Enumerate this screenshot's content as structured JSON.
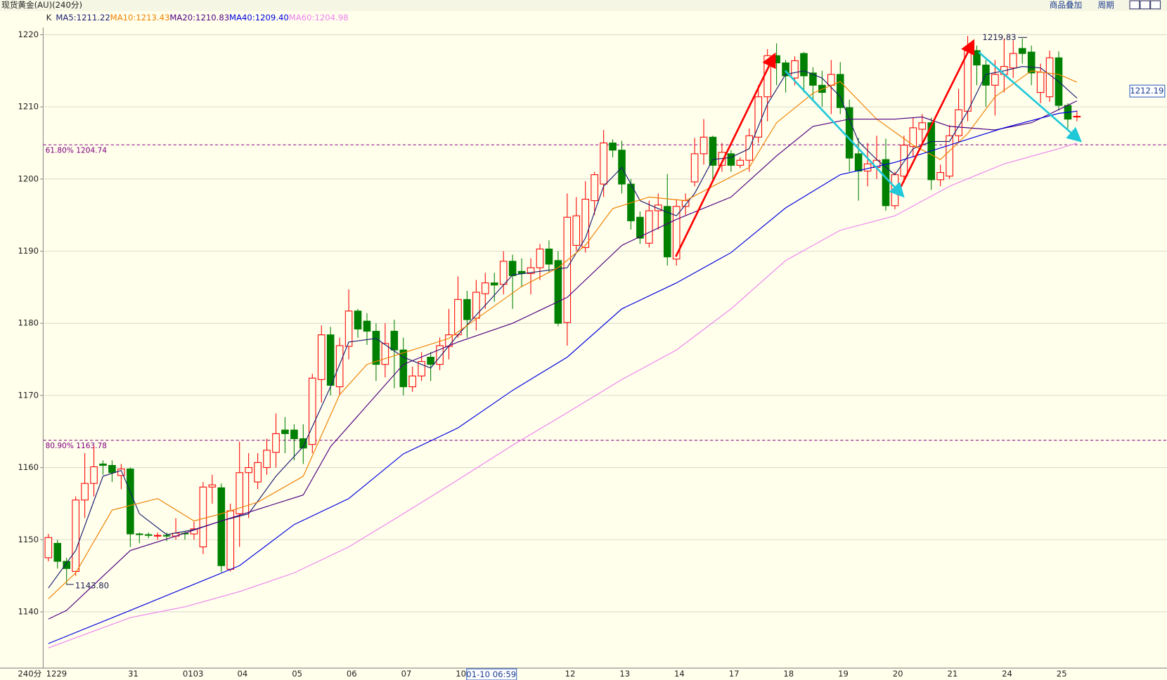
{
  "chart_data": {
    "type": "candlestick",
    "title": "现货黄金(AU)(240分)",
    "toolbar": [
      "商品叠加",
      "周期"
    ],
    "k_label": "K",
    "period_label": "240分",
    "crosshair_label": "01-10 06:59",
    "categories": [
      "1229",
      null,
      null,
      null,
      null,
      null,
      null,
      null,
      null,
      "31",
      null,
      null,
      null,
      null,
      null,
      "0103",
      null,
      null,
      null,
      null,
      null,
      "04",
      null,
      null,
      null,
      null,
      null,
      "05",
      null,
      null,
      null,
      null,
      null,
      "06",
      null,
      null,
      null,
      null,
      null,
      "07",
      null,
      null,
      null,
      null,
      null,
      "10",
      null,
      null,
      null,
      null,
      null,
      null,
      null,
      null,
      null,
      null,
      null,
      "12",
      null,
      null,
      null,
      null,
      null,
      "13",
      null,
      null,
      null,
      null,
      null,
      "14",
      null,
      null,
      null,
      null,
      null,
      "17",
      null,
      null,
      null,
      null,
      null,
      "18",
      null,
      null,
      null,
      null,
      null,
      "19",
      null,
      null,
      null,
      null,
      null,
      "20",
      null,
      null,
      null,
      null,
      null,
      "21",
      null,
      null,
      null,
      null,
      null,
      "24",
      null,
      null,
      null,
      null,
      null,
      "25",
      null,
      null
    ],
    "open": [
      1147.5,
      1149.5,
      1147,
      1145.6,
      1155.5,
      1157.8,
      1160.5,
      1160.3,
      1158.9,
      1159.8,
      1150.8,
      1150.7,
      1150.6,
      1150.6,
      1150.5,
      1150.9,
      1150.8,
      1149,
      1157.3,
      1157.2,
      1145.9,
      1153.6,
      1159.3,
      1158,
      1160,
      1162.1,
      1165.2,
      1165.2,
      1164,
      1163.2,
      1172.2,
      1178.4,
      1171.2,
      1176.8,
      1181.7,
      1180.3,
      1178.9,
      1174.3,
      1178.9,
      1176.3,
      1171.2,
      1172.7,
      1175.3,
      1174.3,
      1176.8,
      1178.4,
      1183.3,
      1180.7,
      1184.1,
      1185.6,
      1185.4,
      1188.6,
      1187.2,
      1186.9,
      1187.7,
      1190.3,
      1188.7,
      1180.1,
      1190.8,
      1190.5,
      1197,
      1199.3,
      1205,
      1204,
      1199.3,
      1194.7,
      1191.1,
      1195.6,
      1196.2,
      1188.9,
      1196.2,
      1199.6,
      1203.5,
      1205.8,
      1201.9,
      1203.5,
      1201.9,
      1202.6,
      1205.8,
      1211.4,
      1217.1,
      1216.1,
      1214,
      1217.4,
      1214.7,
      1213,
      1213,
      1214.5,
      1209.9,
      1203.5,
      1201.1,
      1201.6,
      1202.7,
      1196.3,
      1200.4,
      1204.5,
      1206.9,
      1207.8,
      1199.9,
      1200.4,
      1206,
      1209.4,
      1217.8,
      1215.8,
      1213,
      1214.5,
      1215.4,
      1218.1,
      1217.6,
      1212,
      1211.4,
      1216.8,
      1210.2,
      1208.6
    ],
    "high": [
      1150.8,
      1150,
      1147.5,
      1156,
      1162,
      1163,
      1161,
      1161,
      1160.5,
      1160,
      1151,
      1151,
      1151,
      1151,
      1153,
      1151.2,
      1152.5,
      1158,
      1159,
      1157.8,
      1155,
      1163.6,
      1162,
      1162,
      1164,
      1167.5,
      1167,
      1166,
      1166,
      1173,
      1179.7,
      1179.5,
      1178,
      1184.7,
      1182,
      1181.4,
      1180,
      1180,
      1180.5,
      1178,
      1174,
      1176,
      1176,
      1178,
      1182,
      1186.5,
      1184.5,
      1186,
      1187,
      1187,
      1190,
      1189.5,
      1189,
      1189,
      1191,
      1191.5,
      1190,
      1198,
      1197.5,
      1199.7,
      1201,
      1206.8,
      1205.5,
      1205.3,
      1200,
      1195.5,
      1197,
      1198,
      1200.7,
      1197.2,
      1198,
      1205.7,
      1208.3,
      1206,
      1205,
      1204,
      1203,
      1207,
      1213,
      1218,
      1218.8,
      1216.5,
      1217,
      1217.6,
      1215.5,
      1215,
      1216.5,
      1216.2,
      1211,
      1205.7,
      1205,
      1206,
      1205.6,
      1201,
      1206,
      1208.5,
      1209,
      1208.5,
      1202,
      1207.5,
      1212.5,
      1219.83,
      1218.5,
      1216.5,
      1216.5,
      1219.5,
      1219.2,
      1219.5,
      1218.5,
      1216,
      1217.8,
      1217.7,
      1210.5,
      1209.5
    ],
    "low": [
      1147,
      1146,
      1143.8,
      1145,
      1153,
      1156,
      1159,
      1158,
      1157,
      1149,
      1149.5,
      1150.2,
      1150,
      1149.8,
      1150,
      1150,
      1150,
      1148,
      1155,
      1145.5,
      1145.6,
      1149,
      1153,
      1157,
      1159,
      1160,
      1162,
      1161,
      1160.5,
      1162,
      1169,
      1170,
      1170,
      1175,
      1178,
      1177,
      1172,
      1172.5,
      1171,
      1170,
      1170.5,
      1172,
      1172,
      1173.5,
      1175,
      1178,
      1178,
      1179,
      1182,
      1183,
      1184,
      1182,
      1185,
      1184,
      1186,
      1187,
      1179.6,
      1176.9,
      1190,
      1189.8,
      1195,
      1197.5,
      1203,
      1198,
      1193,
      1191,
      1190.5,
      1193,
      1188,
      1188,
      1195,
      1199,
      1202,
      1200,
      1201,
      1201,
      1201.5,
      1201,
      1205,
      1208,
      1213,
      1212,
      1213,
      1212,
      1211,
      1210,
      1209,
      1209,
      1201,
      1197,
      1199,
      1200,
      1195.6,
      1195.8,
      1199.5,
      1203,
      1205,
      1198.5,
      1199,
      1200,
      1205,
      1208,
      1213,
      1210,
      1208.8,
      1212,
      1214,
      1216,
      1213,
      1210.5,
      1210.7,
      1209.5,
      1207,
      1208
    ],
    "close": [
      1150.3,
      1147,
      1146,
      1155.5,
      1157.8,
      1160.1,
      1160.3,
      1159.3,
      1159.8,
      1150.8,
      1150.7,
      1150.6,
      1150.6,
      1150.5,
      1150.9,
      1150.8,
      1151.5,
      1157.3,
      1157.6,
      1146.4,
      1154,
      1159.3,
      1160,
      1160.7,
      1162.4,
      1164.7,
      1164.7,
      1164,
      1162.7,
      1172.4,
      1178.4,
      1171.4,
      1176.9,
      1181.7,
      1179.2,
      1178.9,
      1174.3,
      1177.2,
      1176.3,
      1171.2,
      1172.7,
      1174.7,
      1174.3,
      1176.9,
      1178.4,
      1183.3,
      1180.5,
      1184.3,
      1185.6,
      1185.3,
      1188.6,
      1186.6,
      1186.9,
      1187.7,
      1190.3,
      1188.2,
      1180,
      1194.7,
      1194.9,
      1197.2,
      1200.6,
      1205,
      1204,
      1199.3,
      1194.2,
      1191.8,
      1195.6,
      1196.4,
      1189.2,
      1196.2,
      1197,
      1203.5,
      1205.8,
      1201.9,
      1203.7,
      1201.9,
      1202.6,
      1206,
      1211.4,
      1217.1,
      1216.1,
      1214.3,
      1216.4,
      1214.3,
      1213,
      1212,
      1214.5,
      1209.9,
      1202.9,
      1201.1,
      1202.1,
      1202.6,
      1196.3,
      1200.6,
      1204.7,
      1207.1,
      1207.8,
      1199.9,
      1200.9,
      1206,
      1209.6,
      1218.1,
      1215.8,
      1213,
      1214.5,
      1215.6,
      1217.4,
      1217.4,
      1214.7,
      1214.8,
      1216.8,
      1210.2,
      1208.3,
      1208.7
    ],
    "up_color": "#ff0000",
    "down_color": "#008000",
    "series": [
      {
        "name": "MA5:1211.22",
        "color": "#1c1c70",
        "x": [
          0,
          3,
          6,
          8,
          10,
          13,
          16,
          19,
          22,
          25,
          28,
          31,
          33,
          36,
          39,
          42,
          45,
          48,
          51,
          54,
          57,
          59,
          61,
          63,
          65,
          67,
          69,
          71,
          73,
          75,
          77,
          79,
          81,
          83,
          85,
          87,
          89,
          91,
          93,
          95,
          97,
          99,
          101,
          103,
          105,
          107,
          109,
          111,
          113
        ],
        "values": [
          1143.3,
          1148.5,
          1158.8,
          1159.6,
          1153.6,
          1150.7,
          1151.4,
          1152.6,
          1153.6,
          1158.8,
          1162.9,
          1171.2,
          1177.4,
          1177.9,
          1175.3,
          1173.8,
          1178.4,
          1182.5,
          1186.7,
          1187.2,
          1187.7,
          1191.8,
          1199,
          1201.6,
          1197,
          1195.9,
          1194.9,
          1198,
          1202.7,
          1203,
          1204.2,
          1210.4,
          1214.5,
          1215,
          1214,
          1211.4,
          1205.2,
          1202.7,
          1200.6,
          1204.2,
          1205.2,
          1205.2,
          1209.4,
          1214.5,
          1215,
          1215.6,
          1215.4,
          1213.5,
          1211.22
        ]
      },
      {
        "name": "MA10:1213.43",
        "color": "#f08000",
        "x": [
          0,
          3,
          7,
          12,
          16,
          19,
          23,
          28,
          32,
          35,
          40,
          44,
          48,
          52,
          56,
          59,
          62,
          66,
          70,
          73,
          77,
          80,
          84,
          87,
          91,
          95,
          98,
          101,
          104,
          108,
          111,
          113
        ],
        "values": [
          1141.8,
          1145.4,
          1154.1,
          1155.7,
          1152.6,
          1153.6,
          1155.2,
          1158.8,
          1170.1,
          1174.3,
          1176.3,
          1177.9,
          1181.5,
          1185.1,
          1187.7,
          1190.8,
          1195.9,
          1197.5,
          1197,
          1199,
          1201.6,
          1207.8,
          1211.9,
          1213.5,
          1208.3,
          1204.7,
          1202.7,
          1206.3,
          1211.4,
          1215,
          1214.5,
          1213.43
        ]
      },
      {
        "name": "MA20:1210.83",
        "color": "#500080",
        "x": [
          0,
          2,
          9,
          14,
          19,
          28,
          31,
          35,
          39,
          45,
          51,
          57,
          63,
          69,
          75,
          80,
          84,
          88,
          93,
          96,
          99,
          104,
          108,
          113
        ],
        "values": [
          1139,
          1140.2,
          1148.5,
          1150.5,
          1152.6,
          1156.2,
          1162.9,
          1168.6,
          1174.3,
          1177.4,
          1180,
          1183.6,
          1190.8,
          1194.4,
          1197.5,
          1203.2,
          1207.3,
          1208.3,
          1208.3,
          1208.6,
          1207.3,
          1206.8,
          1207.8,
          1210.83
        ]
      },
      {
        "name": "MA40:1209.40",
        "color": "#0000e0",
        "x": [
          0,
          9,
          15,
          21,
          27,
          33,
          39,
          45,
          51,
          57,
          63,
          69,
          75,
          81,
          87,
          93,
          99,
          105,
          111,
          113
        ],
        "values": [
          1135.6,
          1140.2,
          1143.3,
          1146.4,
          1152.1,
          1155.7,
          1161.9,
          1165.5,
          1170.7,
          1175.3,
          1182,
          1185.6,
          1189.8,
          1196,
          1200.6,
          1202.3,
          1204.7,
          1207.1,
          1209.1,
          1209.4
        ]
      },
      {
        "name": "MA60:1204.98",
        "color": "#ee82ee",
        "x": [
          0,
          9,
          15,
          21,
          27,
          33,
          39,
          45,
          51,
          57,
          63,
          69,
          75,
          81,
          87,
          93,
          99,
          105,
          111,
          113
        ],
        "values": [
          1135,
          1139.2,
          1140.7,
          1142.8,
          1145.4,
          1149,
          1153.6,
          1158.3,
          1163.1,
          1167.6,
          1172.2,
          1176.3,
          1182,
          1188.7,
          1192.9,
          1194.9,
          1199,
          1202.1,
          1204.2,
          1204.98
        ]
      }
    ],
    "levels": [
      {
        "value": 1204.74,
        "label": "61.80% 1204.74"
      },
      {
        "value": 1163.78,
        "label": "80.90% 1163.78"
      }
    ],
    "max_label": {
      "value": 1219.83
    },
    "min_label": {
      "value": 1143.8,
      "label": "1143.80"
    },
    "price_tag": 1212.19,
    "ylim": [
      1132.2,
      1221.0
    ],
    "yticks": [
      1140,
      1150,
      1160,
      1170,
      1180,
      1190,
      1200,
      1210,
      1220
    ],
    "grid": true
  }
}
